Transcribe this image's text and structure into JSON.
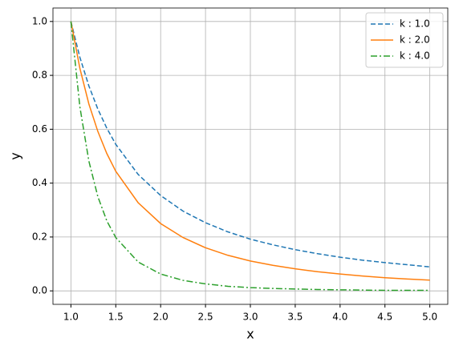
{
  "chart_data": {
    "type": "line",
    "xlabel": "x",
    "ylabel": "y",
    "x": [
      1,
      1.1,
      1.2,
      1.3,
      1.4,
      1.5,
      1.75,
      2,
      2.25,
      2.5,
      2.75,
      3,
      3.25,
      3.5,
      3.75,
      4,
      4.25,
      4.5,
      4.75,
      5
    ],
    "series": [
      {
        "name": "k : 1.0",
        "color": "#1f77b4",
        "linestyle": "dashed",
        "values": [
          1,
          0.867,
          0.761,
          0.675,
          0.604,
          0.544,
          0.432,
          0.354,
          0.296,
          0.253,
          0.219,
          0.192,
          0.171,
          0.153,
          0.138,
          0.125,
          0.114,
          0.105,
          0.097,
          0.089
        ]
      },
      {
        "name": "k : 2.0",
        "color": "#ff7f0e",
        "linestyle": "solid",
        "values": [
          1,
          0.826,
          0.694,
          0.592,
          0.51,
          0.444,
          0.327,
          0.25,
          0.198,
          0.16,
          0.132,
          0.111,
          0.095,
          0.082,
          0.071,
          0.0625,
          0.055,
          0.049,
          0.044,
          0.04
        ]
      },
      {
        "name": "k : 4.0",
        "color": "#2ca02c",
        "linestyle": "dashdot",
        "values": [
          1,
          0.683,
          0.482,
          0.35,
          0.26,
          0.198,
          0.107,
          0.0625,
          0.039,
          0.026,
          0.017,
          0.012,
          0.009,
          0.007,
          0.005,
          0.004,
          0.003,
          0.002,
          0.002,
          0.002
        ]
      }
    ],
    "xlim": [
      0.8,
      5.2
    ],
    "ylim": [
      -0.05,
      1.05
    ],
    "xticks": [
      {
        "value": 1,
        "label": "1.0"
      },
      1.5,
      {
        "value": 2,
        "label": "2.0"
      },
      2.5,
      {
        "value": 3,
        "label": "3.0"
      },
      3.5,
      {
        "value": 4,
        "label": "4.0"
      },
      4.5,
      {
        "value": 5,
        "label": "5.0"
      }
    ],
    "yticks": [
      {
        "value": 0,
        "label": "0.0"
      },
      0.2,
      0.4,
      0.6,
      0.8,
      {
        "value": 1,
        "label": "1.0"
      }
    ],
    "grid": true,
    "legend": "upper right"
  }
}
